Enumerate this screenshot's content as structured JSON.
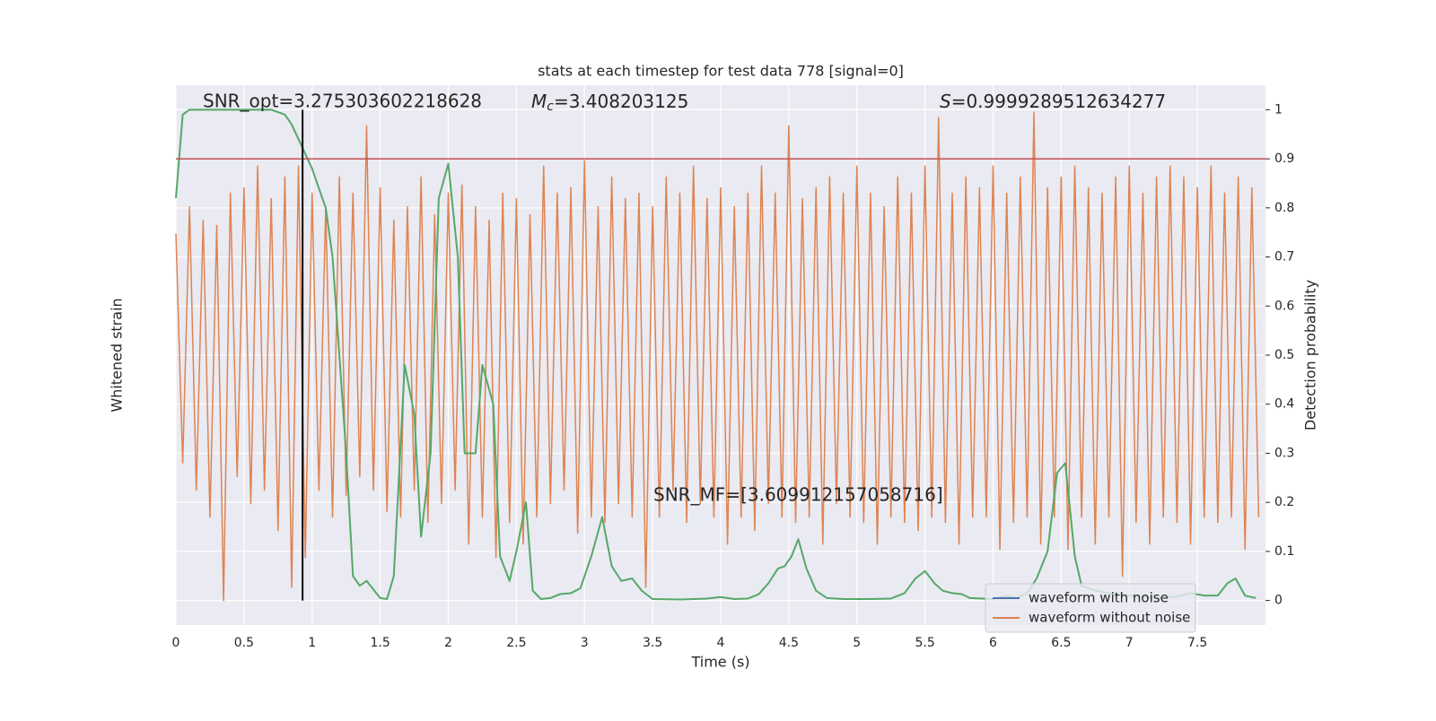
{
  "chart_data": {
    "type": "line",
    "title": "stats at each timestep for test data 778 [signal=0]",
    "xlabel": "Time (s)",
    "ylabel": "Whitened strain",
    "y2label": "Detection probability",
    "annotations": {
      "snr_opt": "SNR_opt=3.275303602218628",
      "mc": [
        "M",
        "c",
        "=3.408203125"
      ],
      "s": [
        "S",
        "=0.9999289512634277"
      ],
      "snr_mf": "SNR_MF=[3.609912157058716]"
    },
    "xlim": [
      0,
      8.0
    ],
    "xticks": [
      0.0,
      0.5,
      1.0,
      1.5,
      2.0,
      2.5,
      3.0,
      3.5,
      4.0,
      4.5,
      5.0,
      5.5,
      6.0,
      6.5,
      7.0,
      7.5
    ],
    "ylim": [
      -1,
      1
    ],
    "y2lim": [
      -0.05,
      1.05
    ],
    "y2ticks": [
      0.0,
      0.1,
      0.2,
      0.3,
      0.4,
      0.5,
      0.6,
      0.7,
      0.8,
      0.9,
      1.0
    ],
    "grid": true,
    "legend": "lower right",
    "threshold": 0.9,
    "threshold_color": "#c44e52",
    "marker_x": 0.93,
    "marker_color": "#000000",
    "series": [
      {
        "name": "waveform with noise",
        "color": "#4c72b0"
      },
      {
        "name": "waveform without noise",
        "color": "#dd8452",
        "x": [
          0,
          0.05,
          0.1,
          0.15,
          0.2,
          0.25,
          0.3,
          0.35,
          0.4,
          0.45,
          0.5,
          0.55,
          0.6,
          0.65,
          0.7,
          0.75,
          0.8,
          0.85,
          0.9,
          0.95,
          1,
          1.05,
          1.1,
          1.15,
          1.2,
          1.25,
          1.3,
          1.35,
          1.4,
          1.45,
          1.5,
          1.55,
          1.6,
          1.65,
          1.7,
          1.75,
          1.8,
          1.85,
          1.9,
          1.95,
          2,
          2.05,
          2.1,
          2.15,
          2.2,
          2.25,
          2.3,
          2.35,
          2.4,
          2.45,
          2.5,
          2.55,
          2.6,
          2.65,
          2.7,
          2.75,
          2.8,
          2.85,
          2.9,
          2.95,
          3,
          3.05,
          3.1,
          3.15,
          3.2,
          3.25,
          3.3,
          3.35,
          3.4,
          3.45,
          3.5,
          3.55,
          3.6,
          3.65,
          3.7,
          3.75,
          3.8,
          3.85,
          3.9,
          3.95,
          4,
          4.05,
          4.1,
          4.15,
          4.2,
          4.25,
          4.3,
          4.35,
          4.4,
          4.45,
          4.5,
          4.55,
          4.6,
          4.65,
          4.7,
          4.75,
          4.8,
          4.85,
          4.9,
          4.95,
          5,
          5.05,
          5.1,
          5.15,
          5.2,
          5.25,
          5.3,
          5.35,
          5.4,
          5.45,
          5.5,
          5.55,
          5.6,
          5.65,
          5.7,
          5.75,
          5.8,
          5.85,
          5.9,
          5.95,
          6,
          6.05,
          6.1,
          6.15,
          6.2,
          6.25,
          6.3,
          6.35,
          6.4,
          6.45,
          6.5,
          6.55,
          6.6,
          6.65,
          6.7,
          6.75,
          6.8,
          6.85,
          6.9,
          6.95,
          7,
          7.05,
          7.1,
          7.15,
          7.2,
          7.25,
          7.3,
          7.35,
          7.4,
          7.45,
          7.5,
          7.55,
          7.6,
          7.65,
          7.7,
          7.75,
          7.8,
          7.85,
          7.9,
          7.95
        ],
        "values": [
          0.45,
          -0.4,
          0.55,
          -0.5,
          0.5,
          -0.6,
          0.48,
          -0.91,
          0.6,
          -0.45,
          0.62,
          -0.55,
          0.7,
          -0.5,
          0.58,
          -0.65,
          0.66,
          -0.86,
          0.7,
          -0.75,
          0.6,
          -0.5,
          0.55,
          -0.6,
          0.66,
          -0.52,
          0.6,
          -0.45,
          0.85,
          -0.5,
          0.62,
          -0.58,
          0.5,
          -0.6,
          0.55,
          -0.5,
          0.66,
          -0.62,
          0.52,
          -0.55,
          0.6,
          -0.5,
          0.63,
          -0.7,
          0.55,
          -0.6,
          0.5,
          -0.75,
          0.6,
          -0.62,
          0.58,
          -0.7,
          0.52,
          -0.6,
          0.7,
          -0.55,
          0.6,
          -0.5,
          0.62,
          -0.66,
          0.72,
          -0.6,
          0.55,
          -0.62,
          0.66,
          -0.55,
          0.58,
          -0.6,
          0.6,
          -0.86,
          0.55,
          -0.6,
          0.66,
          -0.5,
          0.6,
          -0.62,
          0.7,
          -0.55,
          0.58,
          -0.6,
          0.62,
          -0.7,
          0.55,
          -0.6,
          0.6,
          -0.65,
          0.7,
          -0.55,
          0.6,
          -0.6,
          0.85,
          -0.62,
          0.58,
          -0.6,
          0.62,
          -0.7,
          0.66,
          -0.55,
          0.6,
          -0.6,
          0.7,
          -0.62,
          0.6,
          -0.7,
          0.55,
          -0.6,
          0.66,
          -0.62,
          0.6,
          -0.65,
          0.7,
          -0.6,
          0.88,
          -0.62,
          0.6,
          -0.7,
          0.66,
          -0.6,
          0.62,
          -0.6,
          0.7,
          -0.72,
          0.6,
          -0.62,
          0.66,
          -0.6,
          0.9,
          -0.7,
          0.62,
          -0.6,
          0.66,
          -0.72,
          0.7,
          -0.6,
          0.62,
          -0.7,
          0.6,
          -0.6,
          0.66,
          -0.82,
          0.7,
          -0.62,
          0.6,
          -0.7,
          0.66,
          -0.6,
          0.7,
          -0.62,
          0.66,
          -0.7,
          0.62,
          -0.6,
          0.7,
          -0.62,
          0.6,
          -0.6,
          0.66,
          -0.72,
          0.62,
          -0.6
        ]
      },
      {
        "color": "#55a868",
        "axis": "y2",
        "x": [
          0,
          0.05,
          0.1,
          0.3,
          0.5,
          0.7,
          0.8,
          0.85,
          0.9,
          1.0,
          1.1,
          1.15,
          1.2,
          1.25,
          1.3,
          1.35,
          1.4,
          1.5,
          1.55,
          1.6,
          1.68,
          1.75,
          1.8,
          1.87,
          1.93,
          2.0,
          2.07,
          2.12,
          2.2,
          2.25,
          2.33,
          2.38,
          2.45,
          2.5,
          2.57,
          2.62,
          2.68,
          2.75,
          2.82,
          2.9,
          2.97,
          3.05,
          3.13,
          3.2,
          3.27,
          3.35,
          3.42,
          3.5,
          3.7,
          3.9,
          4.0,
          4.1,
          4.2,
          4.28,
          4.35,
          4.42,
          4.47,
          4.52,
          4.57,
          4.63,
          4.7,
          4.78,
          4.9,
          5.1,
          5.25,
          5.35,
          5.43,
          5.5,
          5.57,
          5.63,
          5.7,
          5.77,
          5.83,
          6.0,
          6.1,
          6.17,
          6.25,
          6.32,
          6.4,
          6.47,
          6.53,
          6.6,
          6.65,
          6.75,
          6.85,
          7.0,
          7.2,
          7.35,
          7.45,
          7.55,
          7.65,
          7.72,
          7.78,
          7.85,
          7.93
        ],
        "values": [
          0.82,
          0.99,
          1.0,
          1.0,
          1.0,
          1.0,
          0.99,
          0.97,
          0.94,
          0.88,
          0.8,
          0.7,
          0.5,
          0.3,
          0.05,
          0.03,
          0.04,
          0.005,
          0.003,
          0.05,
          0.48,
          0.38,
          0.13,
          0.3,
          0.82,
          0.89,
          0.7,
          0.3,
          0.3,
          0.48,
          0.4,
          0.09,
          0.04,
          0.1,
          0.2,
          0.02,
          0.003,
          0.005,
          0.013,
          0.015,
          0.025,
          0.09,
          0.17,
          0.07,
          0.04,
          0.045,
          0.02,
          0.003,
          0.002,
          0.004,
          0.007,
          0.003,
          0.004,
          0.013,
          0.035,
          0.065,
          0.07,
          0.09,
          0.125,
          0.065,
          0.02,
          0.005,
          0.003,
          0.003,
          0.004,
          0.015,
          0.045,
          0.06,
          0.035,
          0.02,
          0.015,
          0.013,
          0.005,
          0.003,
          0.01,
          0.005,
          0.015,
          0.045,
          0.1,
          0.26,
          0.28,
          0.09,
          0.03,
          0.02,
          0.015,
          0.01,
          0.005,
          0.008,
          0.015,
          0.01,
          0.01,
          0.035,
          0.045,
          0.01,
          0.005
        ]
      }
    ]
  }
}
